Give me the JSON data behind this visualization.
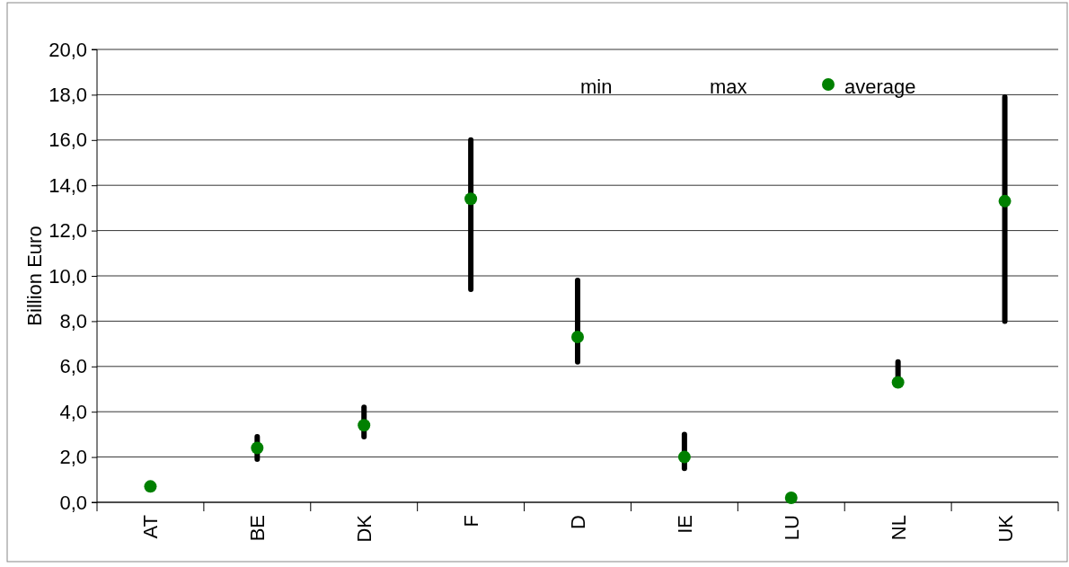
{
  "chart_data": {
    "type": "scatter",
    "ylabel": "Billion Euro",
    "categories": [
      "AT",
      "BE",
      "DK",
      "F",
      "D",
      "IE",
      "LU",
      "NL",
      "UK"
    ],
    "annotations": [
      "min",
      "max"
    ],
    "series": [
      {
        "name": "average",
        "color": "#008000",
        "marker": "circle",
        "values": [
          0.7,
          2.4,
          3.4,
          13.4,
          7.3,
          2.0,
          0.2,
          5.3,
          13.3
        ],
        "errors": [
          null,
          [
            1.9,
            2.9
          ],
          [
            2.9,
            4.2
          ],
          [
            9.4,
            16.0
          ],
          [
            6.2,
            9.8
          ],
          [
            1.5,
            3.0
          ],
          null,
          [
            5.3,
            6.2
          ],
          [
            8.0,
            17.9
          ]
        ]
      }
    ],
    "ylim": [
      0,
      20
    ],
    "yticks": [
      {
        "value": 0,
        "label": "0,0"
      },
      {
        "value": 2,
        "label": "2,0"
      },
      {
        "value": 4,
        "label": "4,0"
      },
      {
        "value": 6,
        "label": "6,0"
      },
      {
        "value": 8,
        "label": "8,0"
      },
      {
        "value": 10,
        "label": "10,0"
      },
      {
        "value": 12,
        "label": "12,0"
      },
      {
        "value": 14,
        "label": "14,0"
      },
      {
        "value": 16,
        "label": "16,0"
      },
      {
        "value": 18,
        "label": "18,0"
      },
      {
        "value": 20,
        "label": "20,0"
      }
    ],
    "grid": "y",
    "legend": "top right"
  }
}
